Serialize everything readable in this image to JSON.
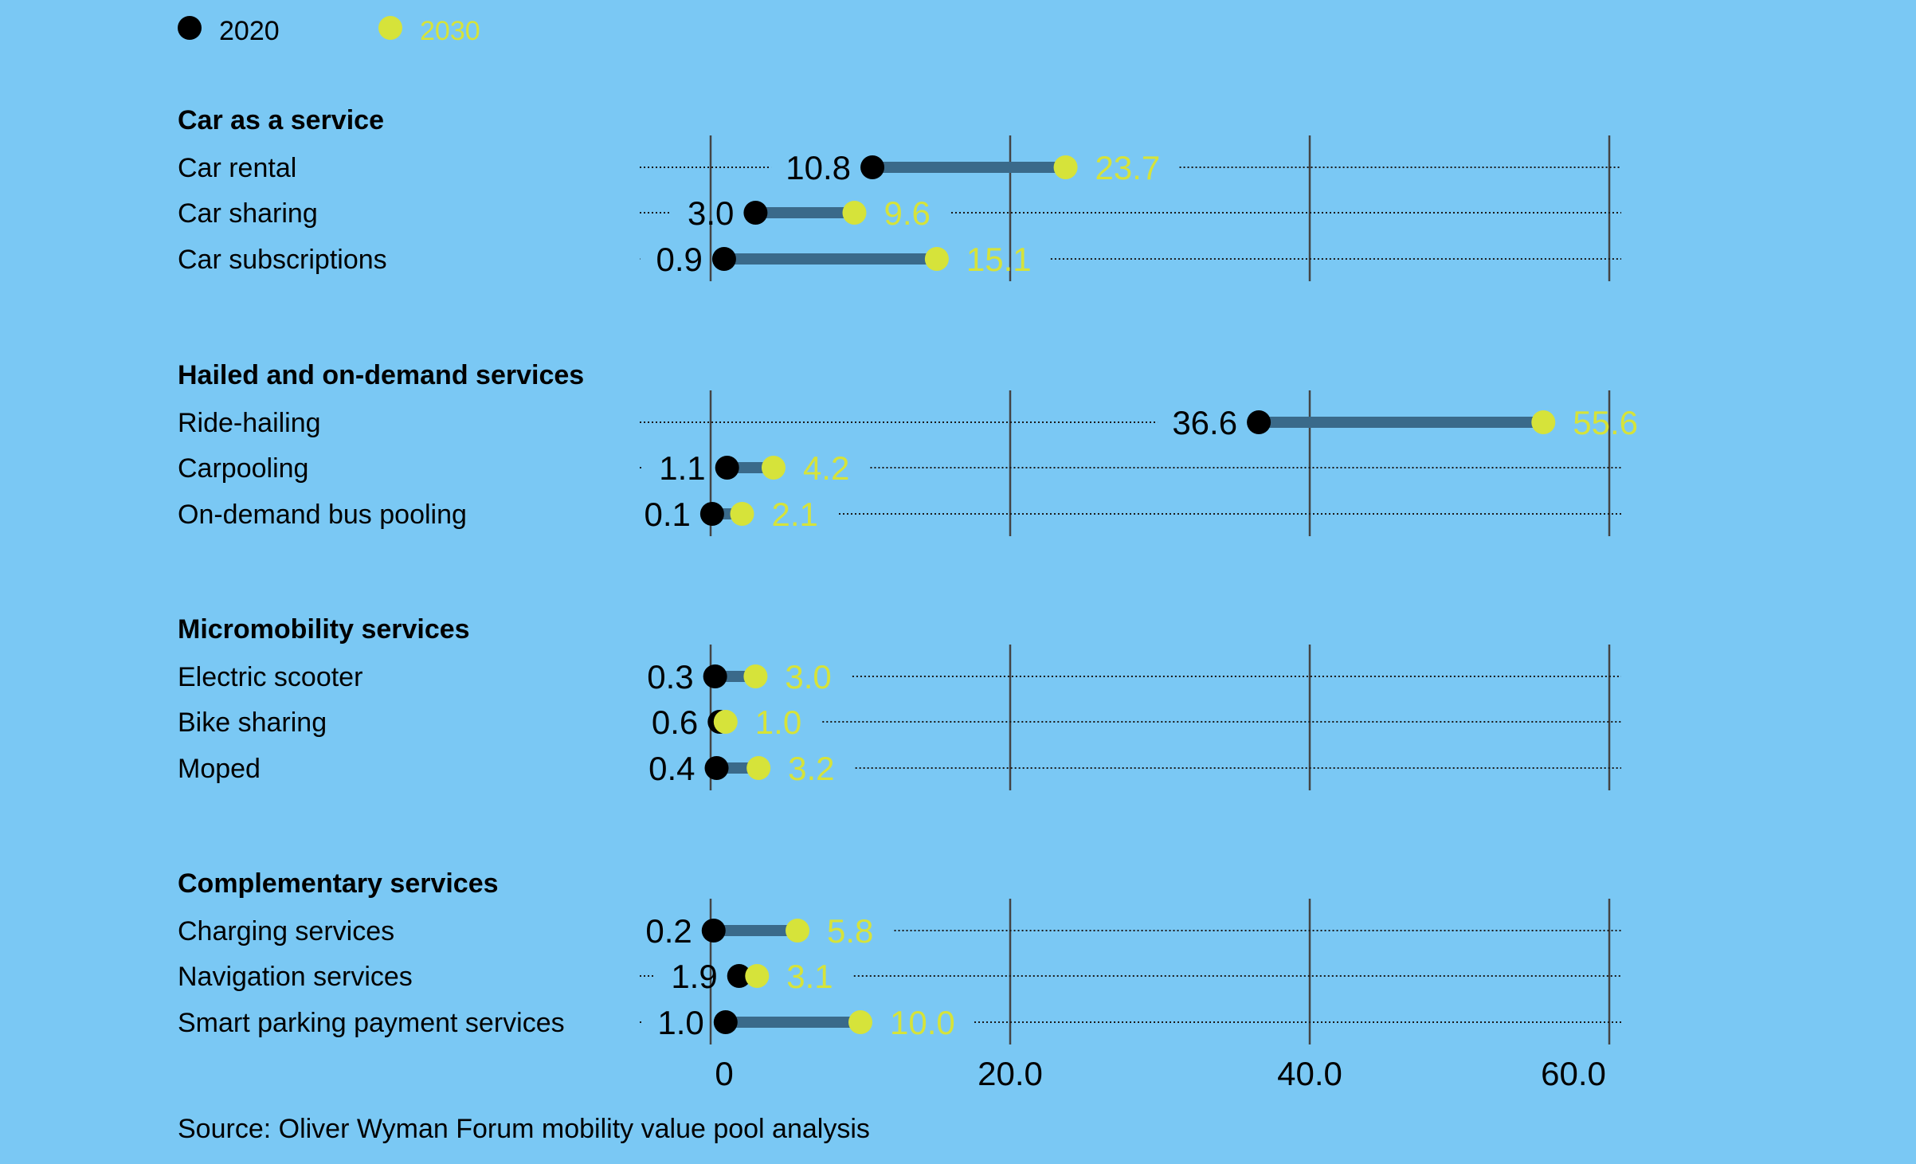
{
  "colors": {
    "background": "#7ac8f4",
    "dot_2020": "#000000",
    "dot_2030": "#d6e33a",
    "bar": "#3a6a8a",
    "grid": "#444444",
    "dotted": "#1a1a1a"
  },
  "legend": [
    {
      "label": "2020",
      "color": "#000000"
    },
    {
      "label": "2030",
      "color": "#d6e33a"
    }
  ],
  "source": "Source: Oliver Wyman Forum mobility value pool analysis",
  "chart_data": {
    "type": "dumbbell",
    "xlim": [
      0,
      60
    ],
    "ticks": [
      {
        "value": 0,
        "label": "0"
      },
      {
        "value": 20,
        "label": "20.0"
      },
      {
        "value": 40,
        "label": "40.0"
      },
      {
        "value": 60,
        "label": "60.0"
      }
    ],
    "series": [
      {
        "name": "2020",
        "color": "#000000"
      },
      {
        "name": "2030",
        "color": "#d6e33a"
      }
    ],
    "groups": [
      {
        "title": "Car as a service",
        "rows": [
          {
            "label": "Car rental",
            "v2020": 10.8,
            "v2030": 23.7,
            "l2020": "10.8",
            "l2030": "23.7"
          },
          {
            "label": "Car sharing",
            "v2020": 3.0,
            "v2030": 9.6,
            "l2020": "3.0",
            "l2030": "9.6"
          },
          {
            "label": "Car subscriptions",
            "v2020": 0.9,
            "v2030": 15.1,
            "l2020": "0.9",
            "l2030": "15.1"
          }
        ]
      },
      {
        "title": "Hailed and on-demand services",
        "rows": [
          {
            "label": "Ride-hailing",
            "v2020": 36.6,
            "v2030": 55.6,
            "l2020": "36.6",
            "l2030": "55.6"
          },
          {
            "label": "Carpooling",
            "v2020": 1.1,
            "v2030": 4.2,
            "l2020": "1.1",
            "l2030": "4.2"
          },
          {
            "label": "On-demand bus pooling",
            "v2020": 0.1,
            "v2030": 2.1,
            "l2020": "0.1",
            "l2030": "2.1"
          }
        ]
      },
      {
        "title": "Micromobility services",
        "rows": [
          {
            "label": "Electric scooter",
            "v2020": 0.3,
            "v2030": 3.0,
            "l2020": "0.3",
            "l2030": "3.0"
          },
          {
            "label": "Bike sharing",
            "v2020": 0.6,
            "v2030": 1.0,
            "l2020": "0.6",
            "l2030": "1.0"
          },
          {
            "label": "Moped",
            "v2020": 0.4,
            "v2030": 3.2,
            "l2020": "0.4",
            "l2030": "3.2"
          }
        ]
      },
      {
        "title": "Complementary services",
        "rows": [
          {
            "label": "Charging services",
            "v2020": 0.2,
            "v2030": 5.8,
            "l2020": "0.2",
            "l2030": "5.8"
          },
          {
            "label": "Navigation services",
            "v2020": 1.9,
            "v2030": 3.1,
            "l2020": "1.9",
            "l2030": "3.1"
          },
          {
            "label": "Smart parking payment services",
            "v2020": 1.0,
            "v2030": 10.0,
            "l2020": "1.0",
            "l2030": "10.0"
          }
        ]
      }
    ]
  }
}
